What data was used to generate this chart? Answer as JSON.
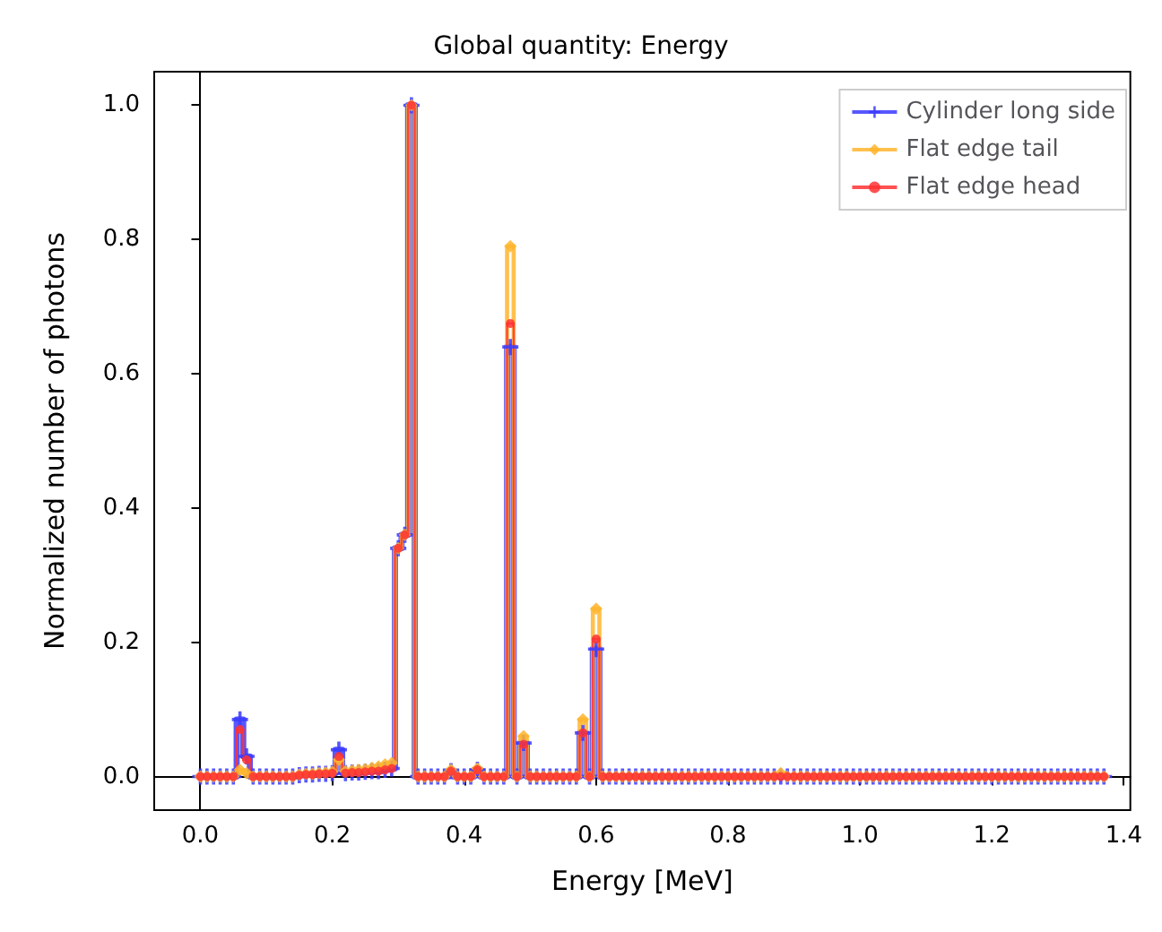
{
  "chart_data": {
    "type": "step",
    "title": "Global quantity: Energy",
    "xlabel": "Energy [MeV]",
    "ylabel": "Normalized number of photons",
    "x": [
      0,
      0.01,
      0.02,
      0.03,
      0.04,
      0.05,
      0.06,
      0.07,
      0.08,
      0.09,
      0.1,
      0.11,
      0.12,
      0.13,
      0.14,
      0.15,
      0.16,
      0.17,
      0.18,
      0.19,
      0.2,
      0.21,
      0.22,
      0.23,
      0.24,
      0.25,
      0.26,
      0.27,
      0.28,
      0.29,
      0.3,
      0.31,
      0.32,
      0.33,
      0.34,
      0.35,
      0.36,
      0.37,
      0.38,
      0.39,
      0.4,
      0.41,
      0.42,
      0.43,
      0.44,
      0.45,
      0.46,
      0.47,
      0.48,
      0.49,
      0.5,
      0.51,
      0.52,
      0.53,
      0.54,
      0.55,
      0.56,
      0.57,
      0.58,
      0.59,
      0.6,
      0.61,
      0.62,
      0.63,
      0.64,
      0.65,
      0.66,
      0.67,
      0.68,
      0.69,
      0.7,
      0.71,
      0.72,
      0.73,
      0.74,
      0.75,
      0.76,
      0.77,
      0.78,
      0.79,
      0.8,
      0.81,
      0.82,
      0.83,
      0.84,
      0.85,
      0.86,
      0.87,
      0.88,
      0.89,
      0.9,
      0.91,
      0.92,
      0.93,
      0.94,
      0.95,
      0.96,
      0.97,
      0.98,
      0.99,
      1,
      1.01,
      1.02,
      1.03,
      1.04,
      1.05,
      1.06,
      1.07,
      1.08,
      1.09,
      1.1,
      1.11,
      1.12,
      1.13,
      1.14,
      1.15,
      1.16,
      1.17,
      1.18,
      1.19,
      1.2,
      1.21,
      1.22,
      1.23,
      1.24,
      1.25,
      1.26,
      1.27,
      1.28,
      1.29,
      1.3,
      1.31,
      1.32,
      1.33,
      1.34,
      1.35,
      1.36,
      1.37
    ],
    "series": [
      {
        "name": "Cylinder long side",
        "color": "#3a3aff",
        "marker": "cross",
        "values": [
          0,
          0,
          0,
          0,
          0,
          0,
          0.085,
          0.03,
          0,
          0,
          0,
          0,
          0,
          0,
          0,
          0.002,
          0.003,
          0.003,
          0.004,
          0.004,
          0.005,
          0.04,
          0.005,
          0.006,
          0.006,
          0.007,
          0.008,
          0.008,
          0.01,
          0.012,
          0.34,
          0.36,
          1.0,
          0,
          0,
          0,
          0,
          0,
          0.008,
          0,
          0,
          0,
          0.01,
          0,
          0,
          0,
          0,
          0.64,
          0,
          0.05,
          0,
          0,
          0,
          0,
          0,
          0,
          0,
          0,
          0.065,
          0,
          0.19,
          0,
          0,
          0,
          0,
          0,
          0,
          0,
          0,
          0,
          0,
          0,
          0,
          0,
          0,
          0,
          0,
          0,
          0,
          0,
          0,
          0,
          0,
          0,
          0,
          0,
          0,
          0,
          0,
          0,
          0,
          0,
          0,
          0,
          0,
          0,
          0,
          0,
          0,
          0,
          0,
          0,
          0,
          0,
          0,
          0,
          0,
          0,
          0,
          0,
          0,
          0,
          0,
          0,
          0,
          0,
          0,
          0,
          0,
          0,
          0,
          0,
          0,
          0,
          0,
          0,
          0,
          0,
          0,
          0,
          0,
          0,
          0,
          0,
          0,
          0,
          0,
          0
        ]
      },
      {
        "name": "Flat edge tail",
        "color": "#ffb52e",
        "marker": "diamond",
        "values": [
          0,
          0,
          0,
          0,
          0,
          0,
          0.01,
          0.005,
          0,
          0,
          0,
          0,
          0,
          0,
          0,
          0.003,
          0.004,
          0.004,
          0.005,
          0.006,
          0.007,
          0.025,
          0.008,
          0.009,
          0.01,
          0.011,
          0.013,
          0.015,
          0.018,
          0.02,
          0.34,
          0.36,
          1.0,
          0,
          0,
          0,
          0,
          0,
          0.01,
          0,
          0,
          0,
          0.012,
          0,
          0,
          0,
          0,
          0.79,
          0,
          0.06,
          0,
          0,
          0,
          0,
          0,
          0,
          0,
          0,
          0.085,
          0,
          0.25,
          0,
          0,
          0,
          0,
          0,
          0,
          0,
          0,
          0,
          0,
          0,
          0,
          0,
          0,
          0,
          0,
          0,
          0,
          0,
          0,
          0,
          0,
          0,
          0,
          0,
          0,
          0,
          0.005,
          0,
          0,
          0,
          0,
          0,
          0,
          0,
          0,
          0,
          0,
          0,
          0,
          0,
          0,
          0,
          0,
          0,
          0,
          0,
          0,
          0,
          0,
          0,
          0,
          0,
          0,
          0,
          0,
          0,
          0,
          0,
          0,
          0,
          0,
          0,
          0,
          0,
          0,
          0,
          0,
          0,
          0,
          0,
          0,
          0,
          0,
          0,
          0,
          0
        ]
      },
      {
        "name": "Flat edge head",
        "color": "#ff3333",
        "marker": "circle",
        "values": [
          0,
          0,
          0,
          0,
          0,
          0,
          0.07,
          0.025,
          0,
          0,
          0,
          0,
          0,
          0,
          0,
          0.002,
          0.003,
          0.003,
          0.004,
          0.004,
          0.005,
          0.03,
          0.005,
          0.006,
          0.006,
          0.007,
          0.008,
          0.008,
          0.01,
          0.012,
          0.34,
          0.36,
          1.0,
          0,
          0,
          0,
          0,
          0,
          0.008,
          0,
          0,
          0,
          0.01,
          0,
          0,
          0,
          0,
          0.675,
          0,
          0.048,
          0,
          0,
          0,
          0,
          0,
          0,
          0,
          0,
          0.065,
          0,
          0.205,
          0,
          0,
          0,
          0,
          0,
          0,
          0,
          0,
          0,
          0,
          0,
          0,
          0,
          0,
          0,
          0,
          0,
          0,
          0,
          0,
          0,
          0,
          0,
          0,
          0,
          0,
          0,
          0,
          0,
          0,
          0,
          0,
          0,
          0,
          0,
          0,
          0,
          0,
          0,
          0,
          0,
          0,
          0,
          0,
          0,
          0,
          0,
          0,
          0,
          0,
          0,
          0,
          0,
          0,
          0,
          0,
          0,
          0,
          0,
          0,
          0,
          0,
          0,
          0,
          0,
          0,
          0,
          0,
          0,
          0,
          0,
          0,
          0,
          0,
          0,
          0,
          0
        ]
      }
    ],
    "xlim": [
      -0.07,
      1.41
    ],
    "xticks": [
      {
        "value": 0,
        "label": "0.0"
      },
      0.2,
      0.4,
      0.6,
      0.8,
      {
        "value": 1,
        "label": "1.0"
      },
      1.2,
      1.4
    ],
    "ylim": [
      -0.05,
      1.05
    ],
    "yticks": [
      {
        "value": 0,
        "label": "0.0"
      },
      0.2,
      0.4,
      0.6,
      0.8,
      {
        "value": 1,
        "label": "1.0"
      }
    ],
    "legend": "top right",
    "line_style": "solid"
  }
}
